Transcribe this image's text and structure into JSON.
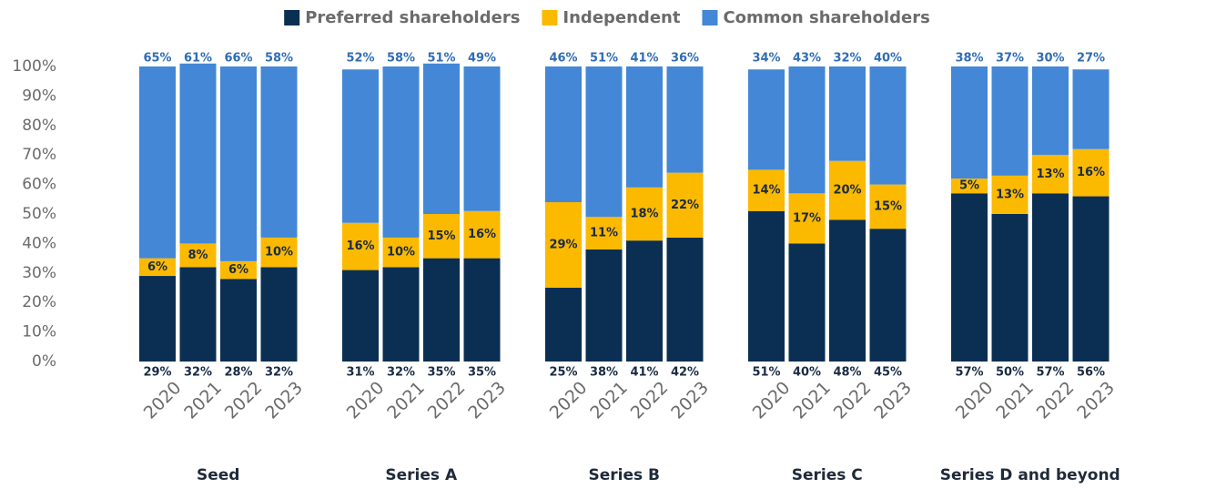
{
  "chart_data": {
    "type": "stacked_bar",
    "groups": [
      {
        "name": "Seed",
        "categories": [
          "2020",
          "2021",
          "2022",
          "2023"
        ]
      },
      {
        "name": "Series A",
        "categories": [
          "2020",
          "2021",
          "2022",
          "2023"
        ]
      },
      {
        "name": "Series B",
        "categories": [
          "2020",
          "2021",
          "2022",
          "2023"
        ]
      },
      {
        "name": "Series C",
        "categories": [
          "2020",
          "2021",
          "2022",
          "2023"
        ]
      },
      {
        "name": "Series D and beyond",
        "categories": [
          "2020",
          "2021",
          "2022",
          "2023"
        ]
      }
    ],
    "series": [
      {
        "name": "Preferred shareholders",
        "color": "#0a2f53",
        "values": [
          29,
          32,
          28,
          32,
          31,
          32,
          35,
          35,
          25,
          38,
          41,
          42,
          51,
          40,
          48,
          45,
          57,
          50,
          57,
          56
        ],
        "value_labels": [
          "29%",
          "32%",
          "28%",
          "32%",
          "31%",
          "32%",
          "35%",
          "35%",
          "25%",
          "38%",
          "41%",
          "42%",
          "51%",
          "40%",
          "48%",
          "45%",
          "57%",
          "50%",
          "57%",
          "56%"
        ]
      },
      {
        "name": "Independent",
        "color": "#fbb900",
        "values": [
          6,
          8,
          6,
          10,
          16,
          10,
          15,
          16,
          29,
          11,
          18,
          22,
          14,
          17,
          20,
          15,
          5,
          13,
          13,
          16
        ],
        "value_labels": [
          "6%",
          "8%",
          "6%",
          "10%",
          "16%",
          "10%",
          "15%",
          "16%",
          "29%",
          "11%",
          "18%",
          "22%",
          "14%",
          "17%",
          "20%",
          "15%",
          "5%",
          "13%",
          "13%",
          "16%"
        ]
      },
      {
        "name": "Common shareholders",
        "color": "#4387d6",
        "values": [
          65,
          61,
          66,
          58,
          52,
          58,
          51,
          49,
          46,
          51,
          41,
          36,
          34,
          43,
          32,
          40,
          38,
          37,
          30,
          27
        ],
        "value_labels": [
          "65%",
          "61%",
          "66%",
          "58%",
          "52%",
          "58%",
          "51%",
          "49%",
          "46%",
          "51%",
          "41%",
          "36%",
          "34%",
          "43%",
          "32%",
          "40%",
          "38%",
          "37%",
          "30%",
          "27%"
        ]
      }
    ],
    "ylim": [
      0,
      100
    ],
    "yticks": [
      {
        "value": 0,
        "label": "0%"
      },
      {
        "value": 10,
        "label": "10%"
      },
      {
        "value": 20,
        "label": "20%"
      },
      {
        "value": 30,
        "label": "30%"
      },
      {
        "value": 40,
        "label": "40%"
      },
      {
        "value": 50,
        "label": "50%"
      },
      {
        "value": 60,
        "label": "60%"
      },
      {
        "value": 70,
        "label": "70%"
      },
      {
        "value": 80,
        "label": "80%"
      },
      {
        "value": 90,
        "label": "90%"
      },
      {
        "value": 100,
        "label": "100%"
      }
    ],
    "legend": "top"
  }
}
